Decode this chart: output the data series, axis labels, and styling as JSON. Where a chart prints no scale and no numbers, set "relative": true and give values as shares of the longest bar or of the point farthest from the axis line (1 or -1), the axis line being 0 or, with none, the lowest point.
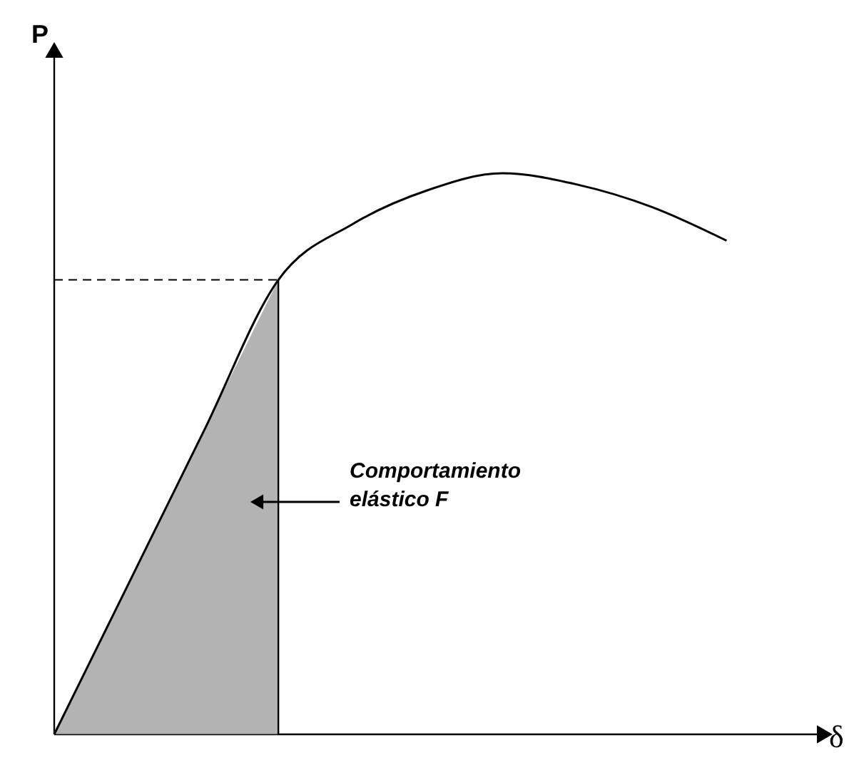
{
  "chart_data": {
    "type": "line",
    "relative": true,
    "xlabel": "δ",
    "ylabel": "P",
    "categories": [
      null,
      null,
      null,
      null,
      null,
      null,
      null,
      null,
      null,
      null
    ],
    "series": [
      {
        "type": "area",
        "color": "#a0a0a0",
        "values": [
          0,
          0.27,
          0.54,
          0.81,
          null,
          null,
          null,
          null,
          null,
          null
        ]
      },
      {
        "color": "#000000",
        "values": [
          0,
          0.27,
          0.54,
          0.81,
          0.91,
          0.97,
          1,
          0.98,
          0.94,
          0.88
        ]
      }
    ],
    "ref_lines": [
      {
        "axis": "y",
        "value": 0.81,
        "line_style": "dashed",
        "color": "#000000"
      }
    ],
    "annotations": [
      "Comportamiento\nelástico F"
    ],
    "grid": false,
    "tick_labels": false
  }
}
